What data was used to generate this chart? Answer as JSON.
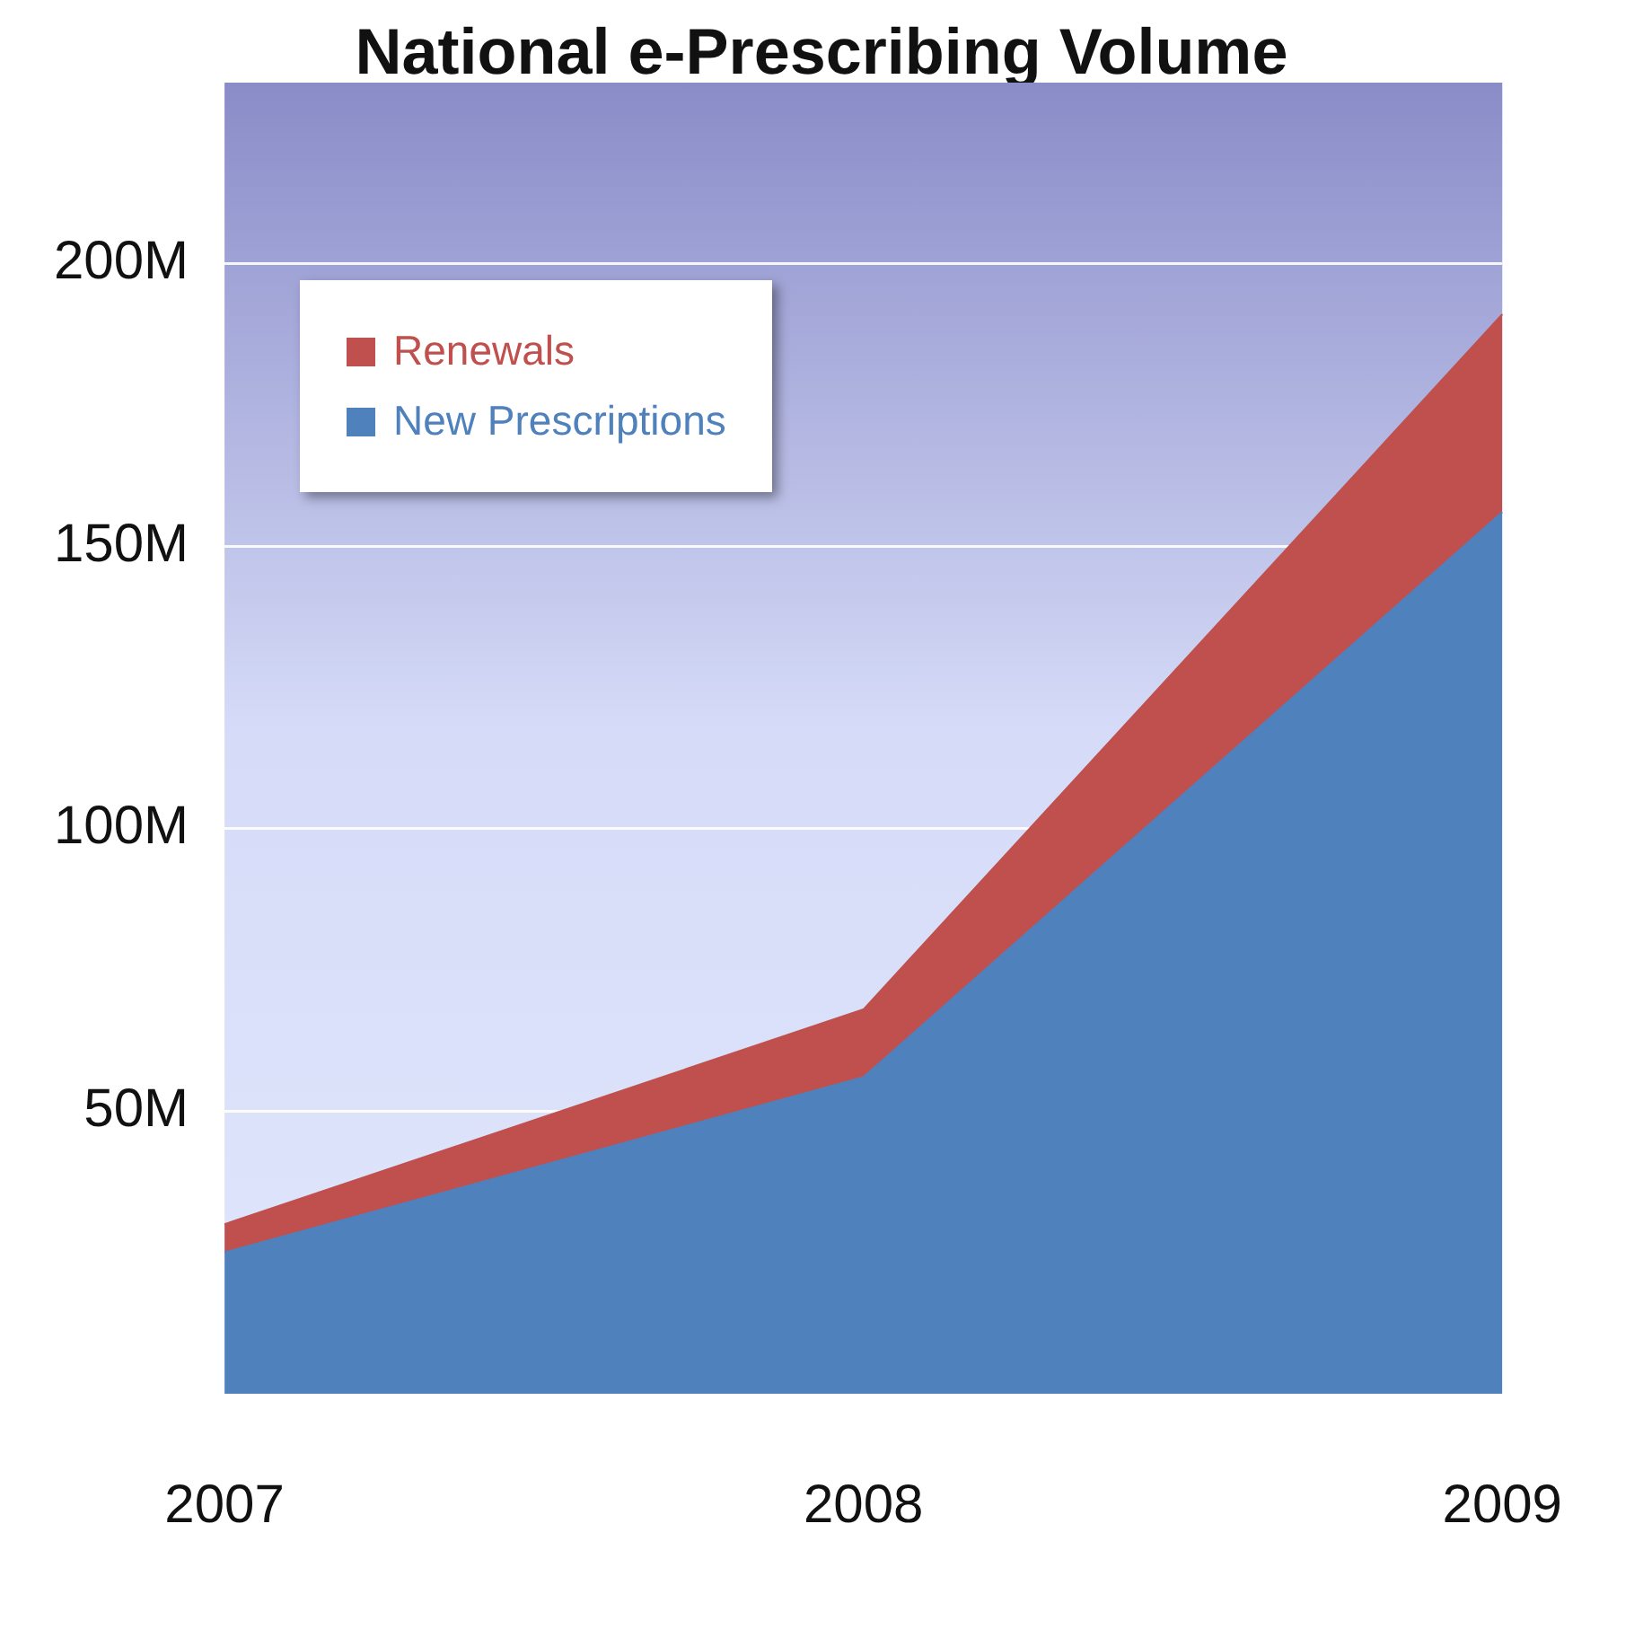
{
  "chart_data": {
    "type": "area",
    "title": "National e-Prescribing Volume",
    "categories": [
      "2007",
      "2008",
      "2009"
    ],
    "stacked": true,
    "series": [
      {
        "name": "New Prescriptions",
        "color": "#4f81bd",
        "values": [
          25,
          56,
          156
        ]
      },
      {
        "name": "Renewals",
        "color": "#c0504d",
        "values": [
          5,
          12,
          35
        ]
      }
    ],
    "ylim": [
      0,
      232
    ],
    "yticks": [
      {
        "value": 50,
        "label": "50M"
      },
      {
        "value": 100,
        "label": "100M"
      },
      {
        "value": 150,
        "label": "150M"
      },
      {
        "value": 200,
        "label": "200M"
      }
    ],
    "grid": "y",
    "legend": "top left"
  }
}
